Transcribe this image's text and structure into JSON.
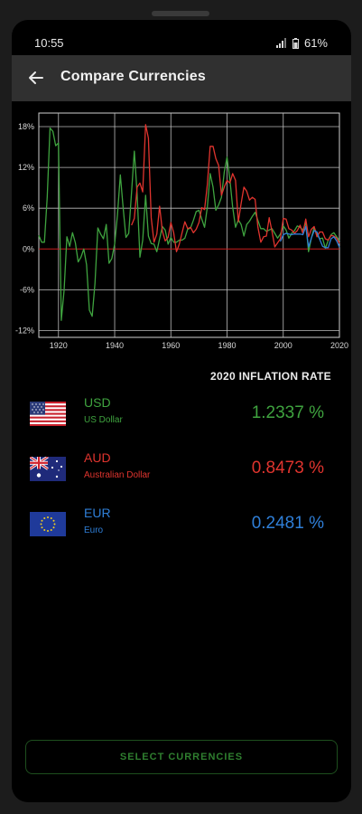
{
  "status": {
    "time": "10:55",
    "battery": "61%"
  },
  "appbar": {
    "title": "Compare Currencies",
    "back_icon": "arrow-back-icon"
  },
  "colors": {
    "usd": "#3fa33f",
    "aud": "#e0342e",
    "eur": "#2f7fd8",
    "accent_button": "#2f7f2f"
  },
  "chart_data": {
    "type": "line",
    "title": "",
    "xlabel": "",
    "ylabel": "",
    "xlim": [
      1913,
      2020
    ],
    "ylim": [
      -13,
      20
    ],
    "x_ticks": [
      "1920",
      "1940",
      "1960",
      "1980",
      "2000",
      "2020"
    ],
    "y_ticks": [
      "18%",
      "12%",
      "6%",
      "0%",
      "-6%",
      "-12%"
    ],
    "grid": true,
    "series": [
      {
        "name": "USD",
        "color": "#3fa33f",
        "x": [
          1913,
          1914,
          1915,
          1916,
          1917,
          1918,
          1919,
          1920,
          1921,
          1922,
          1923,
          1924,
          1925,
          1926,
          1927,
          1928,
          1929,
          1930,
          1931,
          1932,
          1933,
          1934,
          1935,
          1936,
          1937,
          1938,
          1939,
          1940,
          1941,
          1942,
          1943,
          1944,
          1945,
          1946,
          1947,
          1948,
          1949,
          1950,
          1951,
          1952,
          1953,
          1954,
          1955,
          1956,
          1957,
          1958,
          1959,
          1960,
          1961,
          1962,
          1963,
          1964,
          1965,
          1966,
          1967,
          1968,
          1969,
          1970,
          1971,
          1972,
          1973,
          1974,
          1975,
          1976,
          1977,
          1978,
          1979,
          1980,
          1981,
          1982,
          1983,
          1984,
          1985,
          1986,
          1987,
          1988,
          1989,
          1990,
          1991,
          1992,
          1993,
          1994,
          1995,
          1996,
          1997,
          1998,
          1999,
          2000,
          2001,
          2002,
          2003,
          2004,
          2005,
          2006,
          2007,
          2008,
          2009,
          2010,
          2011,
          2012,
          2013,
          2014,
          2015,
          2016,
          2017,
          2018,
          2019,
          2020
        ],
        "values": [
          2,
          1,
          1,
          7.6,
          17.8,
          17.3,
          15.2,
          15.6,
          -10.5,
          -6.1,
          1.8,
          0.4,
          2.4,
          0.9,
          -1.9,
          -1.2,
          0,
          -2.3,
          -9,
          -9.9,
          -5.1,
          3.1,
          2.2,
          1.5,
          3.6,
          -2.1,
          -1.4,
          0.7,
          5,
          10.9,
          6.1,
          1.7,
          2.3,
          8.3,
          14.4,
          8.1,
          -1.2,
          1.3,
          7.9,
          1.9,
          0.8,
          0.7,
          -0.4,
          1.5,
          3.3,
          2.8,
          0.7,
          1.7,
          1,
          1,
          1.3,
          1.3,
          1.6,
          2.9,
          3.1,
          4.2,
          5.5,
          5.7,
          4.4,
          3.2,
          6.2,
          11.1,
          9.1,
          5.7,
          6.5,
          7.6,
          11.3,
          13.5,
          10.3,
          6.2,
          3.2,
          4.3,
          3.6,
          1.9,
          3.6,
          4.1,
          4.8,
          5.4,
          4.2,
          3,
          3,
          2.6,
          2.8,
          3,
          2.3,
          1.6,
          2.2,
          3.4,
          2.8,
          1.6,
          2.3,
          2.7,
          3.4,
          3.2,
          2.8,
          3.8,
          -0.4,
          1.6,
          3.2,
          2.1,
          1.5,
          1.6,
          0.1,
          1.3,
          2.1,
          2.4,
          1.8,
          1.2337
        ]
      },
      {
        "name": "AUD",
        "color": "#e0342e",
        "x": [
          1946,
          1947,
          1948,
          1949,
          1950,
          1951,
          1952,
          1953,
          1954,
          1955,
          1956,
          1957,
          1958,
          1959,
          1960,
          1961,
          1962,
          1963,
          1964,
          1965,
          1966,
          1967,
          1968,
          1969,
          1970,
          1971,
          1972,
          1973,
          1974,
          1975,
          1976,
          1977,
          1978,
          1979,
          1980,
          1981,
          1982,
          1983,
          1984,
          1985,
          1986,
          1987,
          1988,
          1989,
          1990,
          1991,
          1992,
          1993,
          1994,
          1995,
          1996,
          1997,
          1998,
          1999,
          2000,
          2001,
          2002,
          2003,
          2004,
          2005,
          2006,
          2007,
          2008,
          2009,
          2010,
          2011,
          2012,
          2013,
          2014,
          2015,
          2016,
          2017,
          2018,
          2019,
          2020
        ],
        "values": [
          3.5,
          4.5,
          9.1,
          9.7,
          8.4,
          18.3,
          16.3,
          4.6,
          1,
          2.2,
          6.3,
          2.6,
          1.2,
          1.7,
          3.9,
          2.4,
          -0.4,
          0.7,
          2.4,
          4,
          3,
          3.2,
          2.4,
          2.9,
          3.9,
          6.1,
          5.8,
          9.5,
          15.1,
          15.1,
          13.3,
          12.3,
          7.9,
          9.1,
          10.1,
          9.7,
          11.1,
          10.1,
          4,
          6.7,
          9.1,
          8.5,
          7.2,
          7.6,
          7.3,
          3.2,
          1,
          1.8,
          1.9,
          4.6,
          2.6,
          0.3,
          0.9,
          1.5,
          4.5,
          4.4,
          3,
          2.8,
          2.3,
          2.7,
          3.5,
          2.3,
          4.4,
          1.8,
          2.9,
          3.3,
          1.8,
          2.5,
          2.5,
          1.5,
          1.3,
          2,
          1.9,
          1.6,
          0.8473
        ]
      },
      {
        "name": "EUR",
        "color": "#2f7fd8",
        "x": [
          1999,
          2000,
          2001,
          2002,
          2003,
          2004,
          2005,
          2006,
          2007,
          2008,
          2009,
          2010,
          2011,
          2012,
          2013,
          2014,
          2015,
          2016,
          2017,
          2018,
          2019,
          2020
        ],
        "values": [
          1.1,
          2.1,
          2.3,
          2.2,
          2.1,
          2.2,
          2.2,
          2.2,
          2.1,
          3.3,
          0.3,
          1.6,
          2.7,
          2.5,
          1.4,
          0.4,
          0.2,
          0.2,
          1.5,
          1.8,
          1.2,
          0.2481
        ]
      }
    ]
  },
  "rate_header": "2020  INFLATION RATE",
  "currencies": [
    {
      "code": "USD",
      "name": "US Dollar",
      "value": "1.2337 %",
      "flag": "us-flag-icon"
    },
    {
      "code": "AUD",
      "name": "Australian Dollar",
      "value": "0.8473 %",
      "flag": "au-flag-icon"
    },
    {
      "code": "EUR",
      "name": "Euro",
      "value": "0.2481 %",
      "flag": "eu-flag-icon"
    }
  ],
  "button": {
    "label": "SELECT CURRENCIES"
  }
}
